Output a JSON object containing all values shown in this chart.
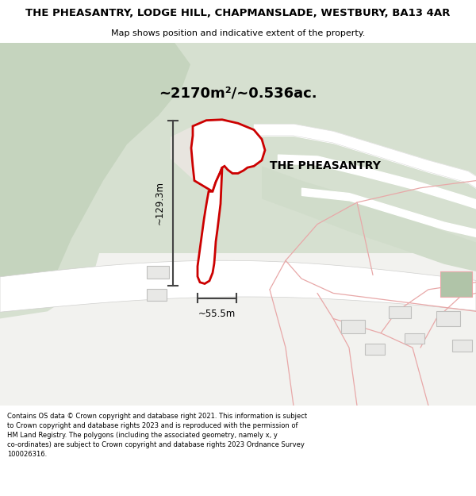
{
  "title_line1": "THE PHEASANTRY, LODGE HILL, CHAPMANSLADE, WESTBURY, BA13 4AR",
  "title_line2": "Map shows position and indicative extent of the property.",
  "area_text": "~2170m²/~0.536ac.",
  "label_text": "THE PHEASANTRY",
  "dim_height": "~129.3m",
  "dim_width": "~55.5m",
  "footer": "Contains OS data © Crown copyright and database right 2021. This information is subject to Crown copyright and database rights 2023 and is reproduced with the permission of HM Land Registry. The polygons (including the associated geometry, namely x, y co-ordinates) are subject to Crown copyright and database rights 2023 Ordnance Survey 100026316.",
  "bg_light_green": "#d6e0d0",
  "bg_white": "#f7f7f5",
  "road_white": "#ffffff",
  "plot_fill": "#ffffff",
  "plot_edge": "#cc0000",
  "pink_line": "#e8a8a8",
  "dim_color": "#444444",
  "bldg_fill": "#e8e8e6",
  "bldg_edge": "#c0c0be",
  "green_bldg_fill": "#b0c4a8",
  "darker_green": "#c5d4be",
  "mid_green": "#d0dcca",
  "header_title_size": 9.5,
  "header_sub_size": 8.0,
  "area_text_size": 13,
  "label_size": 10,
  "dim_size": 8.5,
  "footer_size": 6.0
}
